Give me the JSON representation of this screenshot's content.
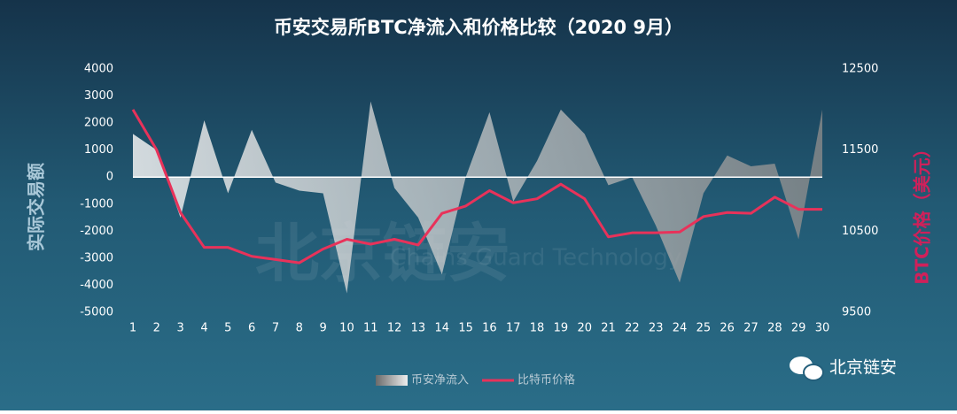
{
  "chart_data": {
    "type": "area_line",
    "title": "币安交易所BTC净流入和价格比较（2020 9月）",
    "y_label": "实际交易额",
    "y2_label": "BTC价格（美元）",
    "categories": [
      "1",
      "2",
      "3",
      "4",
      "5",
      "6",
      "7",
      "8",
      "9",
      "10",
      "11",
      "12",
      "13",
      "14",
      "15",
      "16",
      "17",
      "18",
      "19",
      "20",
      "21",
      "22",
      "23",
      "24",
      "25",
      "26",
      "27",
      "28",
      "29",
      "30"
    ],
    "series": [
      {
        "name": "币安净流入",
        "type": "area",
        "color": "#d9d9d9",
        "values": [
          1600,
          1000,
          -1500,
          2100,
          -600,
          1750,
          -200,
          -500,
          -600,
          -4300,
          2800,
          -400,
          -1500,
          -3600,
          0,
          2400,
          -900,
          600,
          2500,
          1600,
          -300,
          0,
          -1800,
          -3900,
          -600,
          800,
          400,
          500,
          -2300,
          2500
        ]
      },
      {
        "name": "比特币价格",
        "type": "line",
        "axis": "y2",
        "color": "#e8325a",
        "values": [
          12000,
          11500,
          10730,
          10300,
          10300,
          10190,
          10150,
          10110,
          10280,
          10400,
          10340,
          10400,
          10330,
          10720,
          10810,
          11000,
          10850,
          10900,
          11080,
          10900,
          10430,
          10480,
          10480,
          10490,
          10680,
          10730,
          10720,
          10920,
          10770,
          10770
        ]
      }
    ],
    "ylim": [
      -5000,
      4000
    ],
    "yticks": [
      -5000,
      -4000,
      -3000,
      -2000,
      -1000,
      0,
      1000,
      2000,
      3000,
      4000
    ],
    "y2lim": [
      9500,
      12500
    ],
    "y2ticks": [
      9500,
      10500,
      11500,
      12500
    ],
    "grid": false,
    "legend": "bottom"
  },
  "watermark": {
    "title": "北京链安",
    "subtitle": "Chains Guard Technology"
  },
  "brand": "北京链安"
}
